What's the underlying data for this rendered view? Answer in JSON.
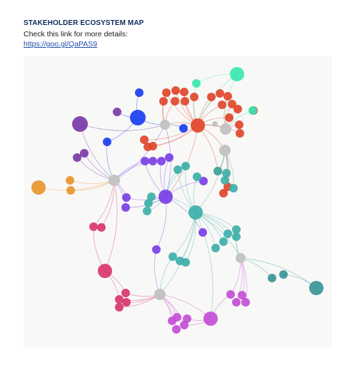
{
  "header": {
    "title": "STAKEHOLDER ECOSYSTEM MAP",
    "subtitle": "Check this link for more details:",
    "link_text": "https://goo.gl/QaPAS9"
  },
  "map": {
    "colors": {
      "red": "#e0452b",
      "blue": "#1a3ef0",
      "violet": "#7a3fe6",
      "purple": "#7a3aa8",
      "teal": "#3cb0a8",
      "mint": "#3ae6b0",
      "orange": "#e8952e",
      "pink": "#d8366a",
      "magenta": "#c44ed6",
      "darkteal": "#3a9596",
      "gray": "#c4c4c4"
    }
  }
}
